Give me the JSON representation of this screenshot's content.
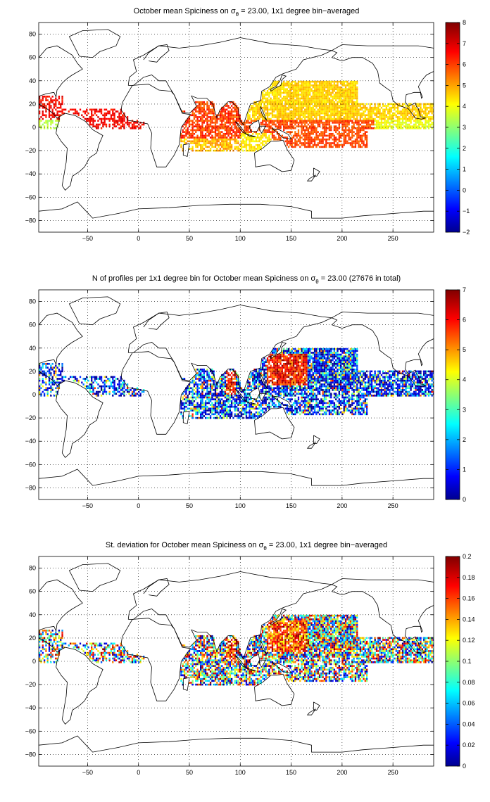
{
  "figure": {
    "panels": [
      {
        "title_pre": "October mean Spiciness on ",
        "title_sigma": "σ",
        "title_sub": "θ",
        "title_post": " = 23.00, 1x1 degree bin−averaged",
        "colorbar_ticks": [
          "8",
          "7",
          "6",
          "5",
          "4",
          "3",
          "2",
          "1",
          "0",
          "−1",
          "−2"
        ]
      },
      {
        "title_pre": "N of profiles per 1x1 degree bin for October mean Spiciness on ",
        "title_sigma": "σ",
        "title_sub": "θ",
        "title_post": " = 23.00 (27676 in total)",
        "colorbar_ticks": [
          "7",
          "6",
          "5",
          "4",
          "3",
          "2",
          "1",
          "0"
        ]
      },
      {
        "title_pre": "St. deviation for October mean Spiciness on ",
        "title_sigma": "σ",
        "title_sub": "θ",
        "title_post": " = 23.00, 1x1 degree bin−averaged",
        "colorbar_ticks": [
          "0.2",
          "0.18",
          "0.16",
          "0.14",
          "0.12",
          "0.1",
          "0.08",
          "0.06",
          "0.04",
          "0.02",
          "0"
        ]
      }
    ],
    "x_ticks": [
      "−50",
      "0",
      "50",
      "100",
      "150",
      "200",
      "250"
    ],
    "y_ticks": [
      "80",
      "60",
      "40",
      "20",
      "0",
      "−20",
      "−40",
      "−60",
      "−80"
    ]
  },
  "chart_data": [
    {
      "type": "heatmap",
      "title": "October mean Spiciness on σθ = 23.00, 1x1 degree bin−averaged",
      "xlim": [
        -98,
        290
      ],
      "ylim": [
        -90,
        90
      ],
      "x_ticks": [
        -50,
        0,
        50,
        100,
        150,
        200,
        250
      ],
      "y_ticks": [
        -80,
        -60,
        -40,
        -20,
        0,
        20,
        40,
        60,
        80
      ],
      "colorbar": {
        "min": -2,
        "max": 8,
        "colormap": "jet"
      },
      "grid": true,
      "regions": [
        {
          "name_hidden": true,
          "lon": [
            -98,
            -75
          ],
          "lat": [
            0,
            25
          ],
          "value": 6.8
        },
        {
          "lon": [
            -95,
            -80
          ],
          "lat": [
            0,
            8
          ],
          "value": 3.5
        },
        {
          "lon": [
            -60,
            5
          ],
          "lat": [
            0,
            15
          ],
          "value": 6.5
        },
        {
          "lon": [
            40,
            100
          ],
          "lat": [
            -20,
            15
          ],
          "value": 5.8
        },
        {
          "lon": [
            100,
            130
          ],
          "lat": [
            -20,
            -5
          ],
          "value": 4.3
        },
        {
          "lon": [
            120,
            210
          ],
          "lat": [
            5,
            40
          ],
          "value": 4.8
        },
        {
          "lon": [
            140,
            220
          ],
          "lat": [
            -15,
            5
          ],
          "value": 5.9
        },
        {
          "lon": [
            200,
            280
          ],
          "lat": [
            0,
            20
          ],
          "value": 4.5
        },
        {
          "lon": [
            230,
            285
          ],
          "lat": [
            0,
            20
          ],
          "value": 3.6
        }
      ]
    },
    {
      "type": "heatmap",
      "title": "N of profiles per 1x1 degree bin for October mean Spiciness on σθ = 23.00 (27676 in total)",
      "xlim": [
        -98,
        290
      ],
      "ylim": [
        -90,
        90
      ],
      "x_ticks": [
        -50,
        0,
        50,
        100,
        150,
        200,
        250
      ],
      "y_ticks": [
        -80,
        -60,
        -40,
        -20,
        0,
        20,
        40,
        60,
        80
      ],
      "colorbar": {
        "min": 0,
        "max": 7,
        "colormap": "jet"
      },
      "grid": true,
      "total_profiles": 27676
    },
    {
      "type": "heatmap",
      "title": "St. deviation for October mean Spiciness on σθ = 23.00, 1x1 degree bin−averaged",
      "xlim": [
        -98,
        290
      ],
      "ylim": [
        -90,
        90
      ],
      "x_ticks": [
        -50,
        0,
        50,
        100,
        150,
        200,
        250
      ],
      "y_ticks": [
        -80,
        -60,
        -40,
        -20,
        0,
        20,
        40,
        60,
        80
      ],
      "colorbar": {
        "min": 0,
        "max": 0.2,
        "colormap": "jet"
      },
      "grid": true
    }
  ]
}
